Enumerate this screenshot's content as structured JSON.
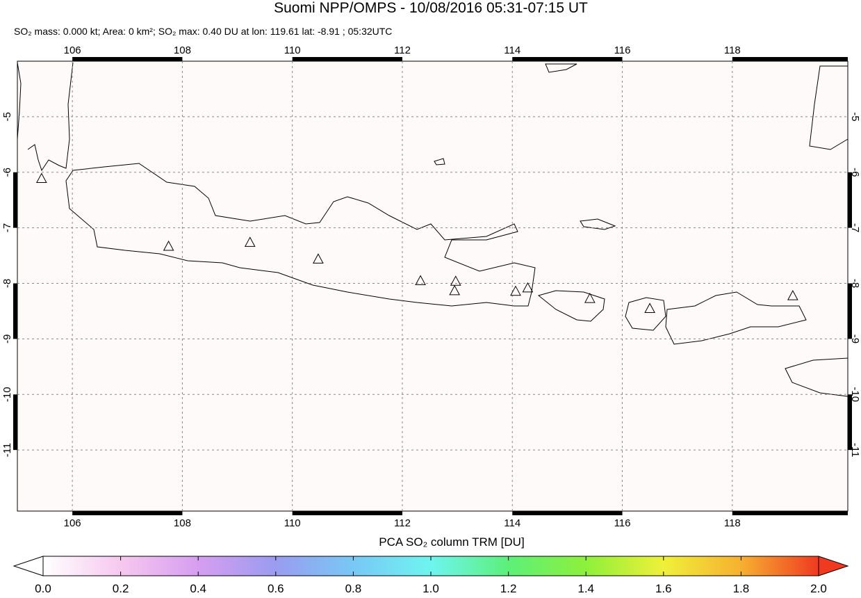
{
  "chart_data": {
    "type": "map",
    "title": "Suomi NPP/OMPS - 10/08/2016 05:31-07:15 UT",
    "subtitle": "SO₂ mass: 0.000 kt; Area: 0 km²; SO₂ max: 0.40 DU at lon: 119.61 lat: -8.91 ; 05:32UTC",
    "xlim": [
      105,
      120.1
    ],
    "ylim": [
      -12.1,
      -4
    ],
    "xticks": [
      106,
      108,
      110,
      112,
      114,
      116,
      118
    ],
    "yticks": [
      -5,
      -6,
      -7,
      -8,
      -9,
      -10,
      -11
    ],
    "grid": true,
    "volcanoes": {
      "lon": [
        105.44,
        107.75,
        109.23,
        110.47,
        112.33,
        112.97,
        112.95,
        114.06,
        114.28,
        115.41,
        116.5,
        119.1
      ],
      "lat": [
        -6.11,
        -7.33,
        -7.26,
        -7.56,
        -7.95,
        -7.96,
        -8.13,
        -8.14,
        -8.08,
        -8.27,
        -8.45,
        -8.22
      ]
    },
    "colorbar": {
      "label": "PCA SO₂ column TRM [DU]",
      "lim": [
        0,
        2
      ],
      "ticks": [
        {
          "value": 0,
          "label": "0.0"
        },
        {
          "value": 0.2,
          "label": "0.2"
        },
        {
          "value": 0.4,
          "label": "0.4"
        },
        {
          "value": 0.6,
          "label": "0.6"
        },
        {
          "value": 0.8,
          "label": "0.8"
        },
        {
          "value": 1,
          "label": "1.0"
        },
        {
          "value": 1.2,
          "label": "1.2"
        },
        {
          "value": 1.4,
          "label": "1.4"
        },
        {
          "value": 1.6,
          "label": "1.6"
        },
        {
          "value": 1.8,
          "label": "1.8"
        },
        {
          "value": 2,
          "label": "2.0"
        }
      ],
      "colors": [
        "#ffffff",
        "#f6c8ef",
        "#d69ef0",
        "#9a9cf0",
        "#78c8f5",
        "#6ef5f0",
        "#5cf07a",
        "#8ef03a",
        "#f0f03a",
        "#f6b030",
        "#f03a20"
      ]
    }
  }
}
